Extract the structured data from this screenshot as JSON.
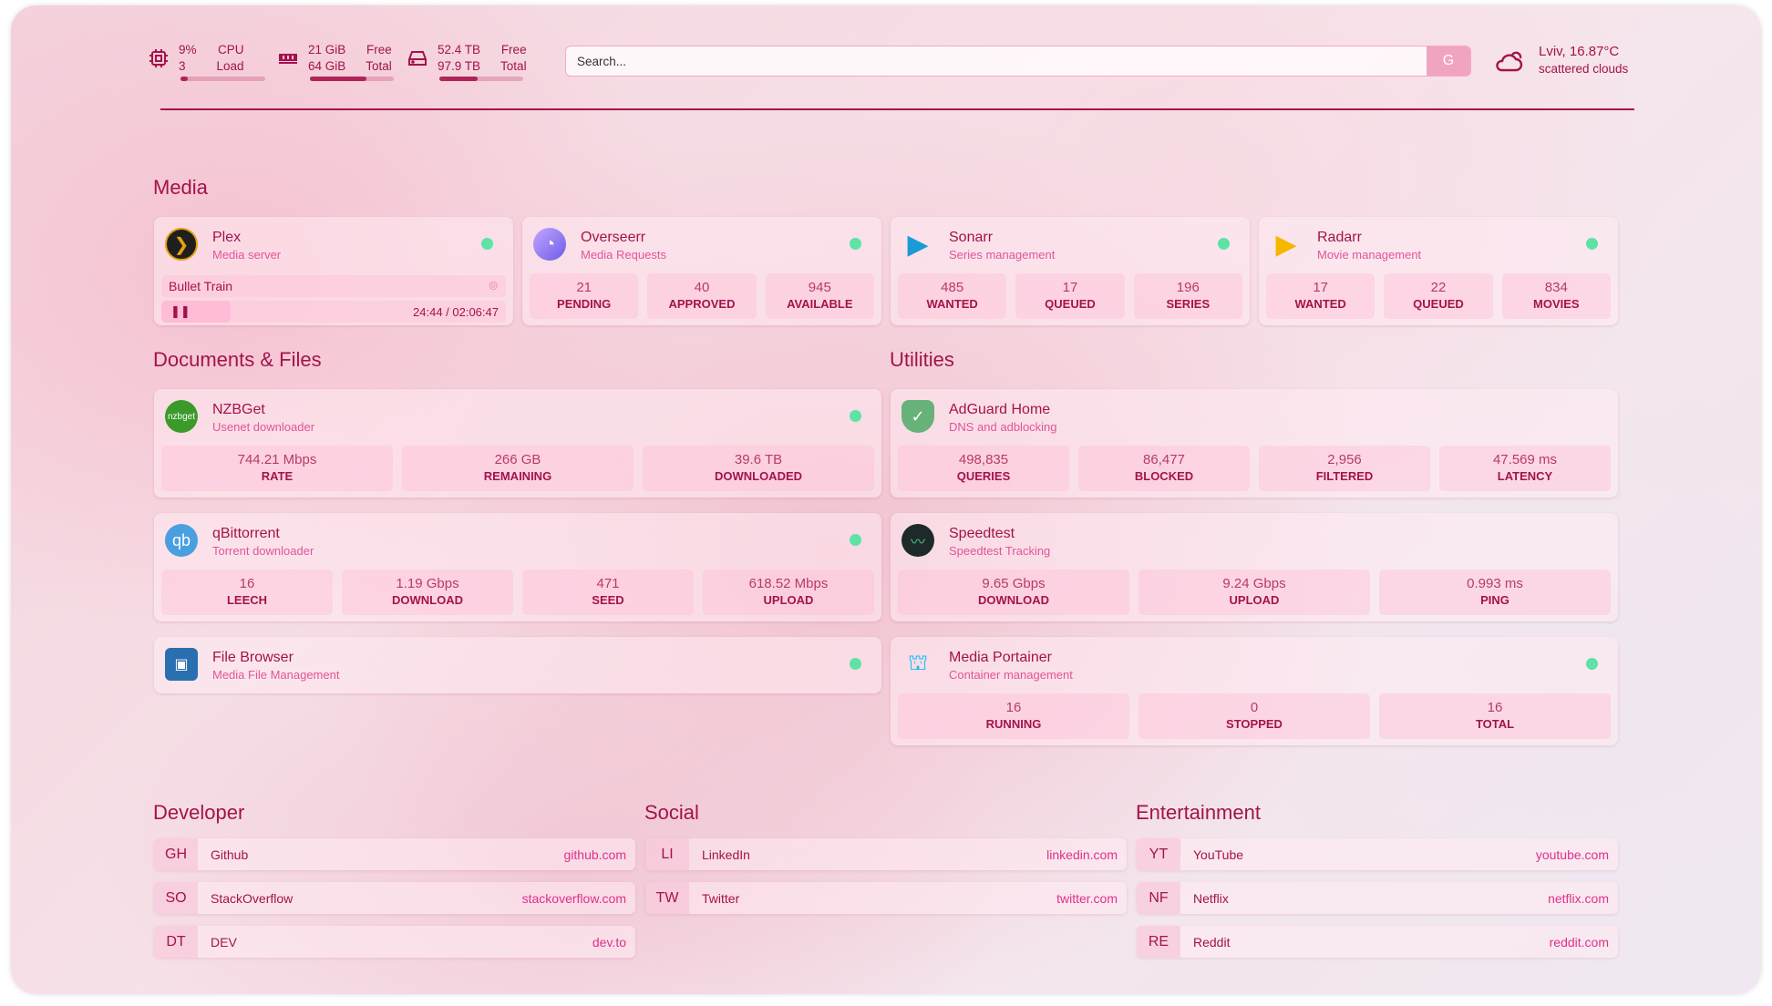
{
  "header": {
    "cpu": {
      "value": "9%",
      "label": "CPU",
      "sub_value": "3",
      "sub_label": "Load",
      "percent": 9,
      "icon": "cpu-icon"
    },
    "memory": {
      "value": "21 GiB",
      "label": "Free",
      "sub_value": "64 GiB",
      "sub_label": "Total",
      "percent": 67,
      "icon": "memory-icon"
    },
    "disk": {
      "value": "52.4 TB",
      "label": "Free",
      "sub_value": "97.9 TB",
      "sub_label": "Total",
      "percent": 46,
      "icon": "hard-drive-icon"
    },
    "search": {
      "placeholder": "Search...",
      "button": "G"
    },
    "weather": {
      "location_temp": "Lviv, 16.87°C",
      "condition": "scattered clouds",
      "icon": "cloud-sun-icon"
    }
  },
  "sections": {
    "media": "Media",
    "docs": "Documents & Files",
    "utilities": "Utilities",
    "developer": "Developer",
    "social": "Social",
    "entertainment": "Entertainment"
  },
  "media": {
    "plex": {
      "name": "Plex",
      "desc": "Media server",
      "now_playing": "Bullet Train",
      "time": "24:44 / 02:06:47",
      "progress_percent": 20
    },
    "overseerr": {
      "name": "Overseerr",
      "desc": "Media Requests",
      "stats": [
        {
          "v": "21",
          "l": "PENDING"
        },
        {
          "v": "40",
          "l": "APPROVED"
        },
        {
          "v": "945",
          "l": "AVAILABLE"
        }
      ]
    },
    "sonarr": {
      "name": "Sonarr",
      "desc": "Series management",
      "stats": [
        {
          "v": "485",
          "l": "WANTED"
        },
        {
          "v": "17",
          "l": "QUEUED"
        },
        {
          "v": "196",
          "l": "SERIES"
        }
      ]
    },
    "radarr": {
      "name": "Radarr",
      "desc": "Movie management",
      "stats": [
        {
          "v": "17",
          "l": "WANTED"
        },
        {
          "v": "22",
          "l": "QUEUED"
        },
        {
          "v": "834",
          "l": "MOVIES"
        }
      ]
    }
  },
  "docs": {
    "nzbget": {
      "name": "NZBGet",
      "desc": "Usenet downloader",
      "icon_text": "nzbget",
      "stats": [
        {
          "v": "744.21 Mbps",
          "l": "RATE"
        },
        {
          "v": "266 GB",
          "l": "REMAINING"
        },
        {
          "v": "39.6 TB",
          "l": "DOWNLOADED"
        }
      ]
    },
    "qbittorrent": {
      "name": "qBittorrent",
      "desc": "Torrent downloader",
      "icon_text": "qb",
      "stats": [
        {
          "v": "16",
          "l": "LEECH"
        },
        {
          "v": "1.19 Gbps",
          "l": "DOWNLOAD"
        },
        {
          "v": "471",
          "l": "SEED"
        },
        {
          "v": "618.52 Mbps",
          "l": "UPLOAD"
        }
      ]
    },
    "filebrowser": {
      "name": "File Browser",
      "desc": "Media File Management"
    }
  },
  "utilities": {
    "adguard": {
      "name": "AdGuard Home",
      "desc": "DNS and adblocking",
      "stats": [
        {
          "v": "498,835",
          "l": "QUERIES"
        },
        {
          "v": "86,477",
          "l": "BLOCKED"
        },
        {
          "v": "2,956",
          "l": "FILTERED"
        },
        {
          "v": "47.569 ms",
          "l": "LATENCY"
        }
      ]
    },
    "speedtest": {
      "name": "Speedtest",
      "desc": "Speedtest Tracking",
      "stats": [
        {
          "v": "9.65 Gbps",
          "l": "DOWNLOAD"
        },
        {
          "v": "9.24 Gbps",
          "l": "UPLOAD"
        },
        {
          "v": "0.993 ms",
          "l": "PING"
        }
      ]
    },
    "portainer": {
      "name": "Media Portainer",
      "desc": "Container management",
      "stats": [
        {
          "v": "16",
          "l": "RUNNING"
        },
        {
          "v": "0",
          "l": "STOPPED"
        },
        {
          "v": "16",
          "l": "TOTAL"
        }
      ]
    }
  },
  "bookmarks": {
    "developer": [
      {
        "abbr": "GH",
        "name": "Github",
        "url": "github.com"
      },
      {
        "abbr": "SO",
        "name": "StackOverflow",
        "url": "stackoverflow.com"
      },
      {
        "abbr": "DT",
        "name": "DEV",
        "url": "dev.to"
      }
    ],
    "social": [
      {
        "abbr": "LI",
        "name": "LinkedIn",
        "url": "linkedin.com"
      },
      {
        "abbr": "TW",
        "name": "Twitter",
        "url": "twitter.com"
      }
    ],
    "entertainment": [
      {
        "abbr": "YT",
        "name": "YouTube",
        "url": "youtube.com"
      },
      {
        "abbr": "NF",
        "name": "Netflix",
        "url": "netflix.com"
      },
      {
        "abbr": "RE",
        "name": "Reddit",
        "url": "reddit.com"
      }
    ]
  },
  "colors": {
    "primary": "#a3134b",
    "accent": "#e0308a",
    "status_online": "#5ee2a6"
  }
}
